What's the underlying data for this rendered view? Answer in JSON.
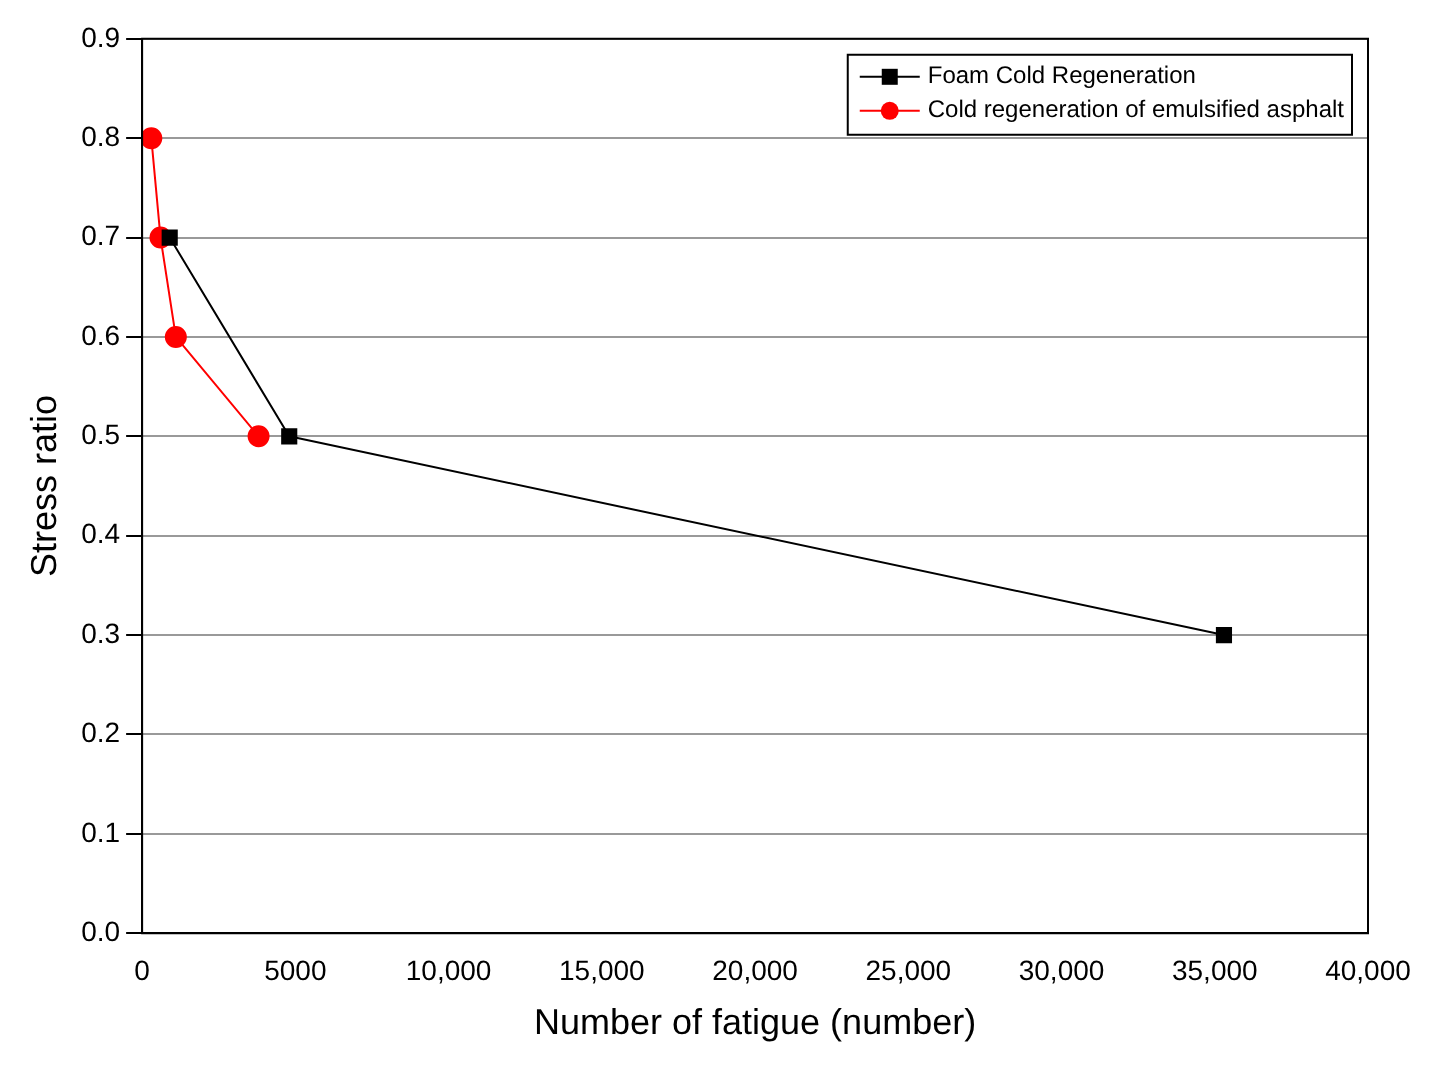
{
  "chart_data": {
    "type": "line",
    "xlabel": "Number of fatigue (number)",
    "ylabel": "Stress ratio",
    "series": [
      {
        "name": "Foam Cold Regeneration",
        "color": "#000000",
        "marker": "square",
        "x": [
          900,
          4800,
          35300
        ],
        "values": [
          0.7,
          0.5,
          0.3
        ]
      },
      {
        "name": "Cold regeneration of emulsified asphalt",
        "color": "#ff0000",
        "marker": "circle",
        "x": [
          300,
          600,
          1100,
          3800
        ],
        "values": [
          0.8,
          0.7,
          0.6,
          0.5
        ]
      }
    ],
    "xlim": [
      0,
      40000
    ],
    "xticks": [
      0,
      5000,
      {
        "value": 10000,
        "label": "10,000"
      },
      {
        "value": 15000,
        "label": "15,000"
      },
      {
        "value": 20000,
        "label": "20,000"
      },
      {
        "value": 25000,
        "label": "25,000"
      },
      {
        "value": 30000,
        "label": "30,000"
      },
      {
        "value": 35000,
        "label": "35,000"
      },
      {
        "value": 40000,
        "label": "40,000"
      }
    ],
    "ylim": [
      0,
      0.9
    ],
    "yticks": [
      {
        "value": 0,
        "label": "0.0"
      },
      0.1,
      0.2,
      0.3,
      0.4,
      0.5,
      0.6,
      0.7,
      0.8,
      0.9
    ],
    "grid": "y",
    "legend": "top right",
    "line_style": "solid"
  }
}
